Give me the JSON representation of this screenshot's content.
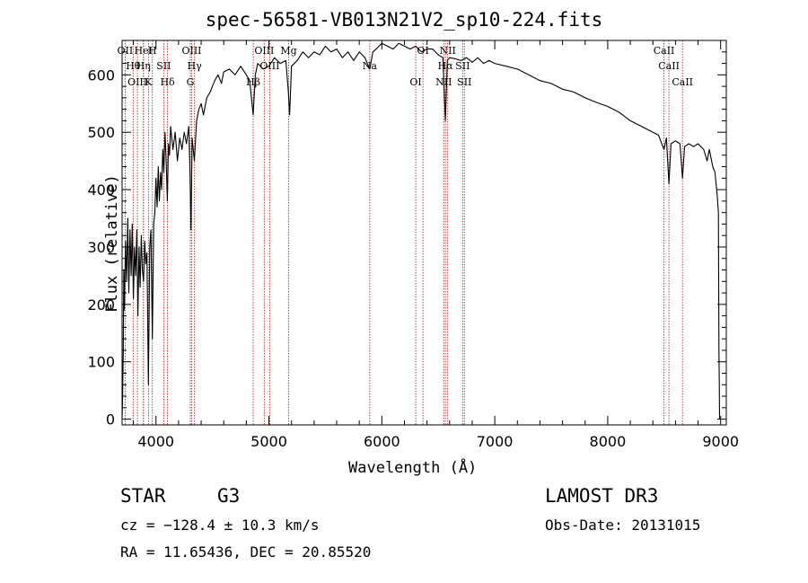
{
  "chart_data": {
    "type": "line",
    "title": "spec-56581-VB013N21V2_sp10-224.fits",
    "xlabel": "Wavelength (Å)",
    "ylabel": "Flux (relative)",
    "xlim": [
      3700,
      9050
    ],
    "ylim": [
      -10,
      660
    ],
    "xticks": [
      4000,
      5000,
      6000,
      7000,
      8000,
      9000
    ],
    "yticks": [
      0,
      100,
      200,
      300,
      400,
      500,
      600
    ],
    "series": [
      {
        "name": "flux",
        "points": [
          [
            3700,
            0
          ],
          [
            3705,
            40
          ],
          [
            3710,
            120
          ],
          [
            3715,
            260
          ],
          [
            3720,
            190
          ],
          [
            3730,
            310
          ],
          [
            3740,
            240
          ],
          [
            3750,
            350
          ],
          [
            3760,
            220
          ],
          [
            3770,
            330
          ],
          [
            3780,
            250
          ],
          [
            3790,
            340
          ],
          [
            3800,
            210
          ],
          [
            3810,
            300
          ],
          [
            3820,
            250
          ],
          [
            3830,
            330
          ],
          [
            3840,
            180
          ],
          [
            3850,
            300
          ],
          [
            3860,
            230
          ],
          [
            3870,
            320
          ],
          [
            3880,
            260
          ],
          [
            3890,
            240
          ],
          [
            3900,
            310
          ],
          [
            3910,
            270
          ],
          [
            3920,
            290
          ],
          [
            3933,
            60
          ],
          [
            3945,
            300
          ],
          [
            3955,
            330
          ],
          [
            3968,
            140
          ],
          [
            3980,
            340
          ],
          [
            3990,
            360
          ],
          [
            4000,
            420
          ],
          [
            4010,
            370
          ],
          [
            4020,
            440
          ],
          [
            4030,
            380
          ],
          [
            4040,
            430
          ],
          [
            4050,
            400
          ],
          [
            4060,
            470
          ],
          [
            4070,
            430
          ],
          [
            4080,
            500
          ],
          [
            4090,
            450
          ],
          [
            4101,
            380
          ],
          [
            4110,
            480
          ],
          [
            4120,
            460
          ],
          [
            4130,
            510
          ],
          [
            4150,
            470
          ],
          [
            4170,
            500
          ],
          [
            4190,
            450
          ],
          [
            4210,
            490
          ],
          [
            4230,
            470
          ],
          [
            4250,
            500
          ],
          [
            4270,
            480
          ],
          [
            4290,
            510
          ],
          [
            4300,
            440
          ],
          [
            4310,
            330
          ],
          [
            4320,
            490
          ],
          [
            4340,
            450
          ],
          [
            4360,
            520
          ],
          [
            4380,
            540
          ],
          [
            4400,
            550
          ],
          [
            4420,
            530
          ],
          [
            4450,
            560
          ],
          [
            4480,
            570
          ],
          [
            4500,
            580
          ],
          [
            4520,
            590
          ],
          [
            4550,
            600
          ],
          [
            4580,
            585
          ],
          [
            4600,
            605
          ],
          [
            4650,
            610
          ],
          [
            4700,
            600
          ],
          [
            4750,
            615
          ],
          [
            4800,
            600
          ],
          [
            4830,
            590
          ],
          [
            4861,
            530
          ],
          [
            4880,
            600
          ],
          [
            4900,
            620
          ],
          [
            4950,
            610
          ],
          [
            5000,
            615
          ],
          [
            5050,
            630
          ],
          [
            5100,
            620
          ],
          [
            5150,
            625
          ],
          [
            5172,
            570
          ],
          [
            5183,
            530
          ],
          [
            5200,
            615
          ],
          [
            5250,
            625
          ],
          [
            5300,
            640
          ],
          [
            5350,
            630
          ],
          [
            5400,
            640
          ],
          [
            5450,
            635
          ],
          [
            5500,
            650
          ],
          [
            5550,
            640
          ],
          [
            5600,
            645
          ],
          [
            5650,
            630
          ],
          [
            5700,
            640
          ],
          [
            5750,
            625
          ],
          [
            5800,
            640
          ],
          [
            5850,
            630
          ],
          [
            5893,
            610
          ],
          [
            5920,
            640
          ],
          [
            5950,
            645
          ],
          [
            6000,
            655
          ],
          [
            6050,
            650
          ],
          [
            6100,
            645
          ],
          [
            6150,
            655
          ],
          [
            6200,
            650
          ],
          [
            6250,
            645
          ],
          [
            6300,
            650
          ],
          [
            6350,
            640
          ],
          [
            6400,
            645
          ],
          [
            6450,
            645
          ],
          [
            6500,
            635
          ],
          [
            6540,
            630
          ],
          [
            6563,
            520
          ],
          [
            6580,
            625
          ],
          [
            6600,
            630
          ],
          [
            6650,
            628
          ],
          [
            6700,
            625
          ],
          [
            6750,
            630
          ],
          [
            6800,
            622
          ],
          [
            6850,
            630
          ],
          [
            6900,
            620
          ],
          [
            6950,
            625
          ],
          [
            7000,
            620
          ],
          [
            7100,
            615
          ],
          [
            7200,
            610
          ],
          [
            7300,
            600
          ],
          [
            7400,
            590
          ],
          [
            7500,
            585
          ],
          [
            7600,
            575
          ],
          [
            7700,
            570
          ],
          [
            7800,
            560
          ],
          [
            7900,
            552
          ],
          [
            8000,
            545
          ],
          [
            8100,
            535
          ],
          [
            8200,
            520
          ],
          [
            8300,
            510
          ],
          [
            8400,
            500
          ],
          [
            8450,
            495
          ],
          [
            8498,
            470
          ],
          [
            8520,
            490
          ],
          [
            8542,
            410
          ],
          [
            8560,
            480
          ],
          [
            8600,
            485
          ],
          [
            8640,
            480
          ],
          [
            8662,
            420
          ],
          [
            8680,
            475
          ],
          [
            8720,
            480
          ],
          [
            8760,
            475
          ],
          [
            8800,
            480
          ],
          [
            8850,
            470
          ],
          [
            8880,
            450
          ],
          [
            8900,
            470
          ],
          [
            8930,
            440
          ],
          [
            8950,
            430
          ],
          [
            8970,
            390
          ],
          [
            8980,
            360
          ],
          [
            8985,
            120
          ],
          [
            8988,
            60
          ],
          [
            8990,
            0
          ]
        ]
      }
    ],
    "lines": [
      {
        "label": "OII",
        "x": 3727
      },
      {
        "label": "Hθ",
        "x": 3798
      },
      {
        "label": "OIII",
        "x": 3836
      },
      {
        "label": "HeI",
        "x": 3889
      },
      {
        "label": "Hη",
        "x": 3889
      },
      {
        "label": "K",
        "x": 3934
      },
      {
        "label": "H",
        "x": 3968
      },
      {
        "label": "SII",
        "x": 4069
      },
      {
        "label": "Hδ",
        "x": 4102
      },
      {
        "label": "OIII",
        "x": 4316
      },
      {
        "label": "Hγ",
        "x": 4341
      },
      {
        "label": "G",
        "x": 4304
      },
      {
        "label": "OIII",
        "x": 4959
      },
      {
        "label": "OIII",
        "x": 5007
      },
      {
        "label": "Hβ",
        "x": 4861
      },
      {
        "label": "Mg",
        "x": 5175
      },
      {
        "label": "Na",
        "x": 5893
      },
      {
        "label": "OI",
        "x": 6300
      },
      {
        "label": "OI",
        "x": 6364
      },
      {
        "label": "Hα",
        "x": 6563
      },
      {
        "label": "NII",
        "x": 6548
      },
      {
        "label": "NII",
        "x": 6583
      },
      {
        "label": "SII",
        "x": 6716
      },
      {
        "label": "SII",
        "x": 6731
      },
      {
        "label": "CaII",
        "x": 8498
      },
      {
        "label": "CaII",
        "x": 8542
      },
      {
        "label": "CaII",
        "x": 8662
      }
    ]
  },
  "info": {
    "object_class": "STAR",
    "subclass": "G3",
    "survey": "LAMOST DR3",
    "redshift_line": "cz = −128.4 ± 10.3 km/s",
    "obs_date_line": "Obs-Date: 20131015",
    "coords_line": "RA =  11.65436, DEC =  20.85520"
  }
}
